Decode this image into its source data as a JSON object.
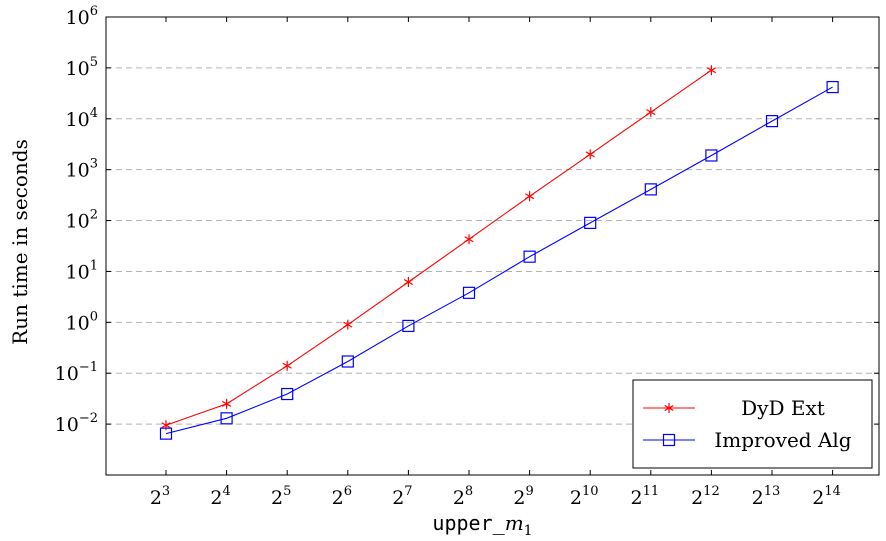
{
  "chart_data": {
    "type": "line",
    "title": "",
    "xlabel_parts": {
      "mono": "upper",
      "sub_sep": "_",
      "math": "m",
      "sub": "1"
    },
    "ylabel": "Run time in seconds",
    "x_scale": "log2",
    "y_scale": "log10",
    "x": [
      8,
      16,
      32,
      64,
      128,
      256,
      512,
      1024,
      2048,
      4096,
      8192,
      16384
    ],
    "x_tick_labels": [
      {
        "base": "2",
        "exp": "3"
      },
      {
        "base": "2",
        "exp": "4"
      },
      {
        "base": "2",
        "exp": "5"
      },
      {
        "base": "2",
        "exp": "6"
      },
      {
        "base": "2",
        "exp": "7"
      },
      {
        "base": "2",
        "exp": "8"
      },
      {
        "base": "2",
        "exp": "9"
      },
      {
        "base": "2",
        "exp": "10"
      },
      {
        "base": "2",
        "exp": "11"
      },
      {
        "base": "2",
        "exp": "12"
      },
      {
        "base": "2",
        "exp": "13"
      },
      {
        "base": "2",
        "exp": "14"
      }
    ],
    "y_tick_labels": [
      {
        "base": "10",
        "exp": "−2"
      },
      {
        "base": "10",
        "exp": "−1"
      },
      {
        "base": "10",
        "exp": "0"
      },
      {
        "base": "10",
        "exp": "1"
      },
      {
        "base": "10",
        "exp": "2"
      },
      {
        "base": "10",
        "exp": "3"
      },
      {
        "base": "10",
        "exp": "4"
      },
      {
        "base": "10",
        "exp": "5"
      },
      {
        "base": "10",
        "exp": "6"
      }
    ],
    "y_tick_values": [
      0.01,
      0.1,
      1,
      10,
      100,
      1000,
      10000,
      100000,
      1000000
    ],
    "ylim": [
      0.001,
      1000000
    ],
    "grid": "horizontal-dashed",
    "legend_position": "bottom-right",
    "series": [
      {
        "name": "DyD Ext",
        "color": "#ff0000",
        "marker": "star",
        "x": [
          8,
          16,
          32,
          64,
          128,
          256,
          512,
          1024,
          2048,
          4096
        ],
        "values": [
          0.0095,
          0.025,
          0.14,
          0.9,
          6.2,
          43,
          300,
          2000,
          13500,
          90000
        ]
      },
      {
        "name": "Improved Alg",
        "color": "#0000ff",
        "marker": "square",
        "x": [
          8,
          16,
          32,
          64,
          128,
          256,
          512,
          1024,
          2048,
          4096,
          8192,
          16384
        ],
        "values": [
          0.0065,
          0.013,
          0.039,
          0.17,
          0.85,
          3.8,
          19.5,
          90,
          410,
          1900,
          9000,
          42000
        ]
      }
    ]
  }
}
